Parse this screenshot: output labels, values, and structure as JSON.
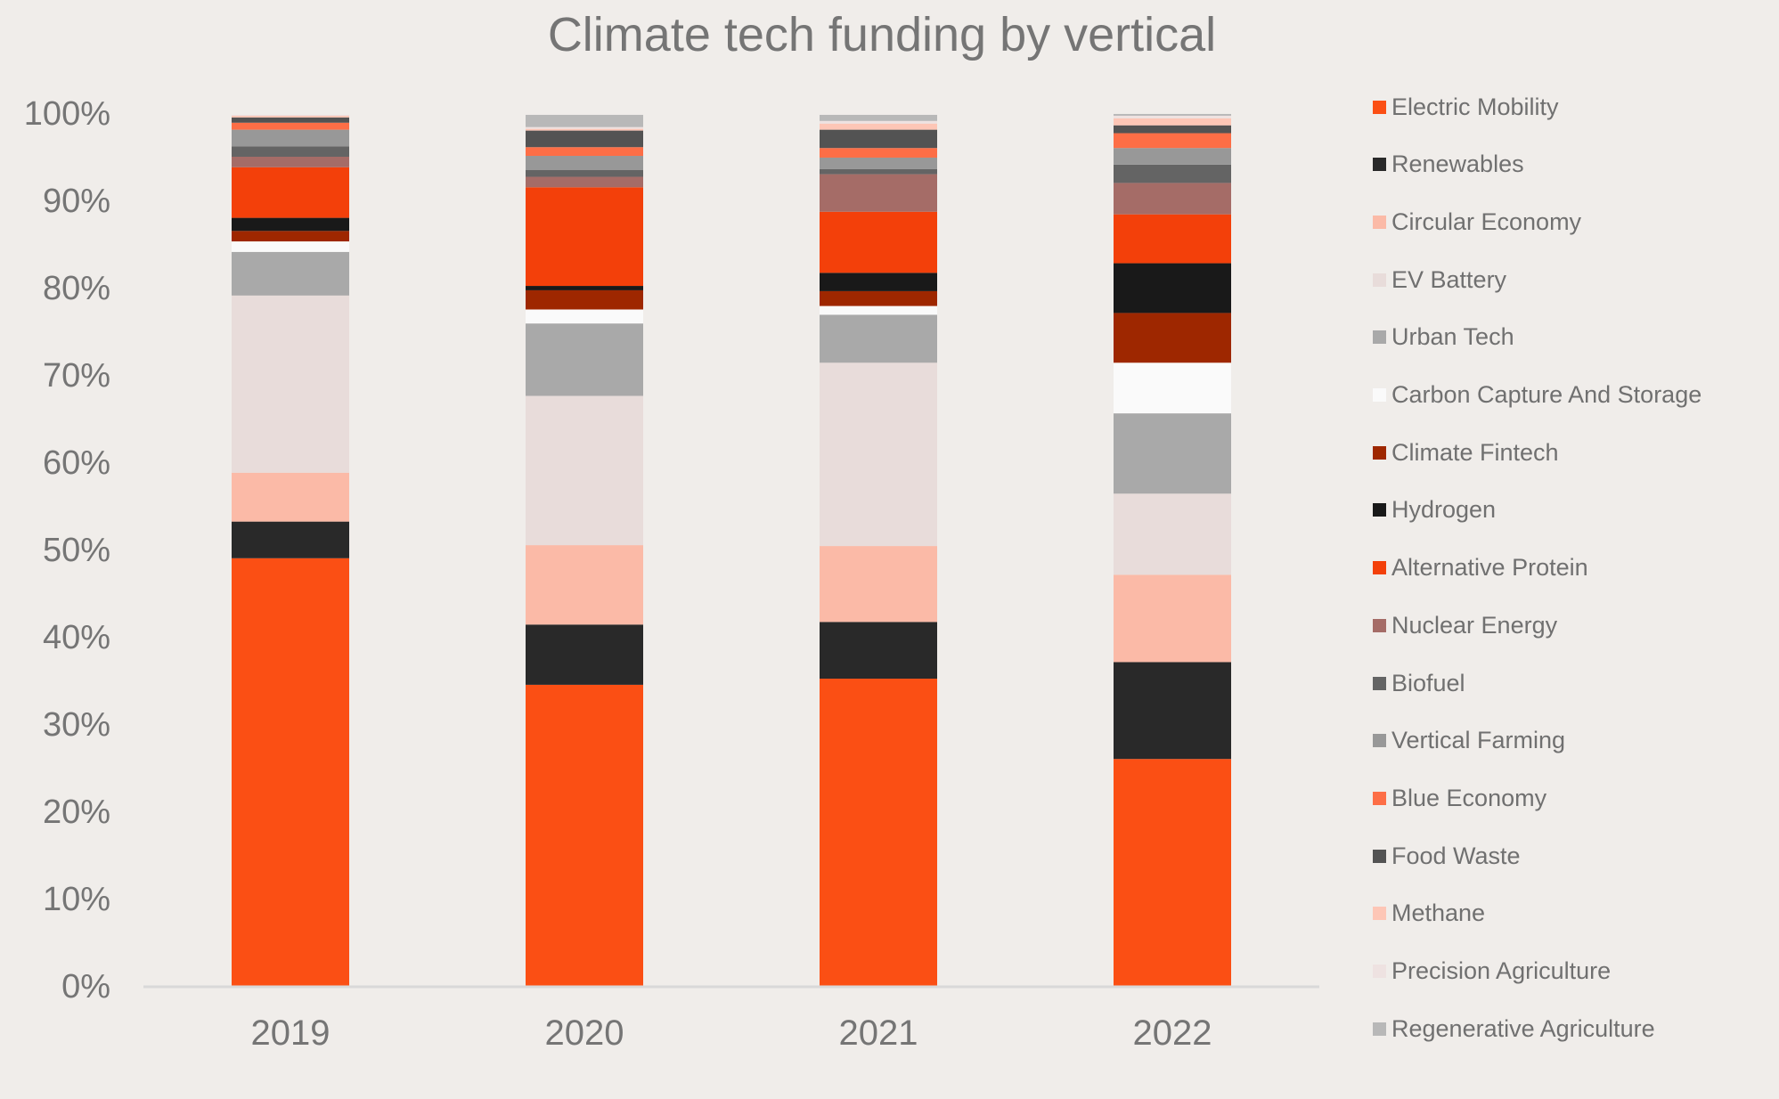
{
  "chart_data": {
    "type": "bar",
    "stacked": true,
    "normalized": true,
    "title": "Climate tech funding by vertical",
    "xlabel": "",
    "ylabel": "",
    "ylim": [
      0,
      100
    ],
    "y_ticks": [
      "0%",
      "10%",
      "20%",
      "30%",
      "40%",
      "50%",
      "60%",
      "70%",
      "80%",
      "90%",
      "100%"
    ],
    "grid": false,
    "legend_position": "right",
    "categories": [
      "2019",
      "2020",
      "2021",
      "2022"
    ],
    "series": [
      {
        "name": "Electric Mobility",
        "color": "#fb4f14",
        "values": [
          49.0,
          34.5,
          35.2,
          26.0
        ]
      },
      {
        "name": "Renewables",
        "color": "#292929",
        "values": [
          4.2,
          6.9,
          6.5,
          11.1
        ]
      },
      {
        "name": "Circular Economy",
        "color": "#fbbaa7",
        "values": [
          5.6,
          9.1,
          8.7,
          10.0
        ]
      },
      {
        "name": "EV Battery",
        "color": "#e8dcda",
        "values": [
          20.3,
          17.1,
          21.0,
          9.3
        ]
      },
      {
        "name": "Urban Tech",
        "color": "#a9a9a9",
        "values": [
          5.0,
          8.3,
          5.5,
          9.2
        ]
      },
      {
        "name": "Carbon Capture And Storage",
        "color": "#fafafa",
        "values": [
          1.2,
          1.6,
          1.0,
          5.8
        ]
      },
      {
        "name": "Climate Fintech",
        "color": "#9e2700",
        "values": [
          1.2,
          2.2,
          1.7,
          5.7
        ]
      },
      {
        "name": "Hydrogen",
        "color": "#191919",
        "values": [
          1.5,
          0.5,
          2.1,
          5.7
        ]
      },
      {
        "name": "Alternative Protein",
        "color": "#f3400a",
        "values": [
          5.8,
          11.3,
          7.0,
          5.6
        ]
      },
      {
        "name": "Nuclear Energy",
        "color": "#a56c67",
        "values": [
          1.2,
          1.2,
          4.3,
          3.6
        ]
      },
      {
        "name": "Biofuel",
        "color": "#646464",
        "values": [
          1.2,
          0.8,
          0.6,
          2.1
        ]
      },
      {
        "name": "Vertical Farming",
        "color": "#989898",
        "values": [
          1.9,
          1.6,
          1.3,
          1.9
        ]
      },
      {
        "name": "Blue Economy",
        "color": "#fd6e46",
        "values": [
          0.8,
          1.0,
          1.1,
          1.7
        ]
      },
      {
        "name": "Food Waste",
        "color": "#535353",
        "values": [
          0.6,
          1.9,
          2.1,
          0.9
        ]
      },
      {
        "name": "Methane",
        "color": "#fdc6b6",
        "values": [
          0.2,
          0.2,
          0.7,
          0.8
        ]
      },
      {
        "name": "Precision Agriculture",
        "color": "#eee2e1",
        "values": [
          0.1,
          0.2,
          0.3,
          0.3
        ]
      },
      {
        "name": "Regenerative Agriculture",
        "color": "#b8b8b8",
        "values": [
          0.0,
          1.4,
          0.7,
          0.2
        ]
      }
    ]
  }
}
